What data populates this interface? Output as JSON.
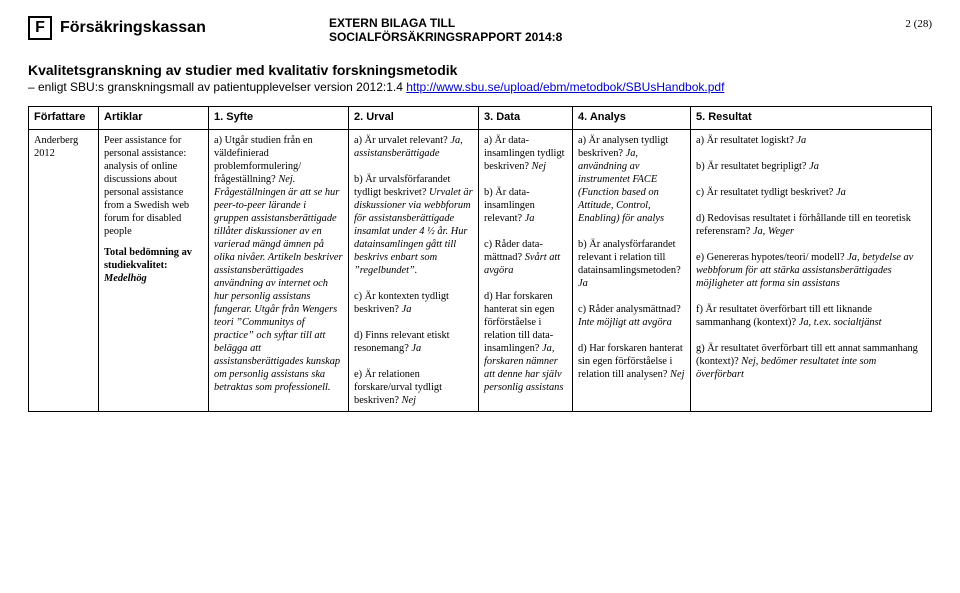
{
  "header": {
    "logo_glyph": "F",
    "logo_text": "Försäkringskassan",
    "doc_line1": "EXTERN BILAGA TILL",
    "doc_line2": "SOCIALFÖRSÄKRINGSRAPPORT 2014:8",
    "page_number": "2 (28)"
  },
  "title": {
    "main": "Kvalitetsgranskning av studier med kvalitativ forskningsmetodik",
    "sub_prefix": "– enligt SBU:s granskningsmall av patientupplevelser version 2012:1.4 ",
    "link_text": "http://www.sbu.se/upload/ebm/metodbok/SBUsHandbok.pdf"
  },
  "columns": {
    "c1": "Författare",
    "c2": "Artiklar",
    "c3": "1. Syfte",
    "c4": "2. Urval",
    "c5": "3. Data",
    "c6": "4. Analys",
    "c7": "5. Resultat"
  },
  "row": {
    "author": "Anderberg 2012",
    "article_p1": "Peer assistance for personal assistance: analysis of online discussions about personal assistance from a Swedish web forum for disabled people",
    "article_p2a": "Total bedömning av studiekvalitet:",
    "article_p2b": "Medelhög",
    "syfte": "a) Utgår studien från en väldefinierad problemformulering/ frågeställning? <i>Nej. Frågeställningen är att se hur peer-to-peer lärande i gruppen assistansberättigade tillåter diskussioner av en varierad mängd ämnen på olika nivåer. Artikeln beskriver assistansberättigades användning av internet och hur personlig assistans fungerar. Utgår från Wengers teori ”Communitys of practice” och syftar till att belägga att assistansberättigades kunskap om personlig assistans ska betraktas som professionell.</i>",
    "urval": "a) Är urvalet relevant? <i>Ja, assistans­berättigade</i><br><br>b) Är urvalsförfarandet tydligt beskrivet? <i>Urvalet är diskussioner via webbforum för assistansberättigade insamlat under 4 ½ år. Hur datainsamlingen gått till beskrivs enbart som ”regelbundet”.</i><br><br>c) Är kontexten tydligt beskriven? <i>Ja</i><br><br>d) Finns relevant etiskt resonemang? <i>Ja</i><br><br>e) Är relationen forskare/urval tydligt beskriven? <i>Nej</i>",
    "data": "a) Är data­insamlingen tydligt beskriven? <i>Nej</i><br><br>b) Är data­insamlingen relevant? <i>Ja</i><br><br>c) Råder data­mättnad? <i>Svårt att avgöra</i><br><br>d) Har forskaren hanterat sin egen för­förståelse i relation till data­insamlingen? <i>Ja, forskaren nämner att denne har själv personlig assistans</i>",
    "analys": "a) Är analysen tydligt beskriven? <i>Ja, användning av instrumentet FACE (Function based on Attitude, Control, Enabling) för analys</i><br><br>b) Är analys­förfarandet relevant i relation till data­insamlings­metoden? <i>Ja</i><br><br>c) Råder analys­mättnad? <i>Inte möjligt att avgöra</i><br><br>d) Har forskaren hanterat sin egen förförståelse i relation till analysen? <i>Nej</i>",
    "resultat": "a) Är resultatet logiskt? <i>Ja</i><br><br>b) Är resultatet begripligt? <i>Ja</i><br><br>c) Är resultatet tydligt beskrivet? <i>Ja</i><br><br>d) Redovisas resultatet i förhållande till en teoretisk referensram? <i>Ja, Weger</i><br><br>e) Genereras hypotes/teori/ modell? <i>Ja, betydelse av webbforum för att stärka assistansberättigades möjligheter att forma sin assistans</i><br><br>f) Är resultatet överförbart till ett liknande sammanhang (kontext)? <i>Ja, t.ex. socialtjänst</i><br><br>g) Är resultatet överförbart till ett annat sammanhang (kontext)? <i>Nej, bedömer resultatet inte som överförbart</i>"
  }
}
